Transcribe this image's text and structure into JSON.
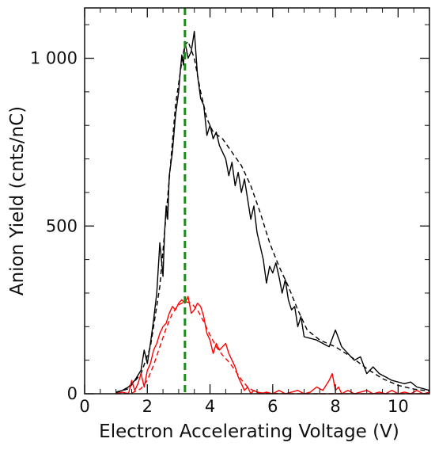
{
  "chart_data": {
    "type": "line",
    "title": "",
    "xlabel": "Electron Accelerating Voltage (V)",
    "ylabel": "Anion Yield (cnts/nC)",
    "xlim": [
      0,
      11
    ],
    "ylim": [
      0,
      1150
    ],
    "x_ticks": [
      0,
      2,
      4,
      6,
      8,
      10
    ],
    "y_ticks": [
      0,
      500,
      1000
    ],
    "x_tick_labels": [
      "0",
      "2",
      "4",
      "6",
      "8",
      "10"
    ],
    "y_tick_labels": [
      "0",
      "500",
      "1 000"
    ],
    "grid": false,
    "legend": "none",
    "vline": {
      "x": 3.2,
      "color": "#1a8a1a",
      "style": "dashed"
    },
    "series": [
      {
        "color": "#000000",
        "style": "solid",
        "x": [
          1.0,
          1.2,
          1.4,
          1.6,
          1.8,
          1.9,
          2.0,
          2.1,
          2.2,
          2.3,
          2.4,
          2.5,
          2.55,
          2.6,
          2.65,
          2.7,
          2.8,
          2.9,
          3.0,
          3.05,
          3.1,
          3.15,
          3.2,
          3.3,
          3.4,
          3.5,
          3.6,
          3.7,
          3.8,
          3.9,
          4.0,
          4.1,
          4.2,
          4.3,
          4.4,
          4.5,
          4.6,
          4.7,
          4.8,
          4.9,
          5.0,
          5.1,
          5.2,
          5.3,
          5.4,
          5.5,
          5.6,
          5.7,
          5.8,
          5.9,
          6.0,
          6.1,
          6.2,
          6.3,
          6.4,
          6.5,
          6.6,
          6.7,
          6.8,
          6.9,
          7.0,
          7.2,
          7.4,
          7.6,
          7.8,
          8.0,
          8.2,
          8.4,
          8.6,
          8.8,
          9.0,
          9.2,
          9.4,
          9.6,
          9.8,
          10.0,
          10.2,
          10.4,
          10.6,
          10.8,
          11.0
        ],
        "y": [
          5,
          10,
          20,
          40,
          70,
          130,
          90,
          150,
          220,
          300,
          450,
          350,
          480,
          560,
          520,
          650,
          720,
          830,
          900,
          960,
          1010,
          980,
          1050,
          1000,
          1020,
          1080,
          950,
          880,
          860,
          770,
          800,
          760,
          780,
          740,
          720,
          700,
          650,
          690,
          620,
          660,
          600,
          640,
          580,
          520,
          560,
          480,
          440,
          400,
          330,
          380,
          360,
          390,
          350,
          300,
          340,
          280,
          250,
          260,
          200,
          230,
          170,
          165,
          160,
          150,
          140,
          190,
          140,
          120,
          100,
          110,
          60,
          80,
          60,
          50,
          40,
          35,
          30,
          35,
          20,
          15,
          10
        ]
      },
      {
        "color": "#000000",
        "style": "dashed",
        "x": [
          1.0,
          1.4,
          1.8,
          2.1,
          2.4,
          2.7,
          2.9,
          3.1,
          3.2,
          3.3,
          3.5,
          3.7,
          3.9,
          4.1,
          4.4,
          4.7,
          5.0,
          5.3,
          5.6,
          5.9,
          6.2,
          6.5,
          6.8,
          7.1,
          7.5,
          8.0,
          8.5,
          9.0,
          9.5,
          10.0,
          10.5,
          11.0
        ],
        "y": [
          3,
          15,
          60,
          140,
          320,
          640,
          860,
          990,
          1040,
          1050,
          1000,
          900,
          820,
          780,
          760,
          720,
          680,
          620,
          540,
          450,
          380,
          320,
          250,
          190,
          160,
          140,
          110,
          75,
          45,
          25,
          14,
          8
        ]
      },
      {
        "color": "#ff0000",
        "style": "solid",
        "x": [
          1.0,
          1.2,
          1.4,
          1.5,
          1.6,
          1.7,
          1.8,
          1.9,
          2.0,
          2.1,
          2.2,
          2.3,
          2.4,
          2.5,
          2.6,
          2.7,
          2.8,
          2.9,
          3.0,
          3.1,
          3.2,
          3.3,
          3.4,
          3.5,
          3.6,
          3.7,
          3.8,
          3.9,
          4.0,
          4.1,
          4.2,
          4.3,
          4.4,
          4.5,
          4.6,
          4.7,
          4.8,
          4.9,
          5.0,
          5.1,
          5.2,
          5.3,
          5.4,
          5.6,
          5.8,
          6.0,
          6.2,
          6.4,
          6.6,
          6.8,
          7.0,
          7.2,
          7.4,
          7.6,
          7.8,
          7.9,
          8.0,
          8.1,
          8.2,
          8.4,
          8.6,
          8.8,
          9.0,
          9.2,
          9.4,
          9.6,
          9.8,
          10.0,
          10.2,
          10.4,
          10.6,
          10.8,
          11.0
        ],
        "y": [
          0,
          5,
          0,
          40,
          10,
          30,
          60,
          20,
          70,
          90,
          130,
          150,
          180,
          200,
          210,
          240,
          260,
          250,
          270,
          280,
          270,
          290,
          240,
          250,
          270,
          260,
          230,
          180,
          160,
          120,
          150,
          130,
          140,
          150,
          120,
          100,
          80,
          50,
          30,
          10,
          20,
          0,
          10,
          0,
          5,
          0,
          10,
          0,
          5,
          10,
          0,
          5,
          20,
          10,
          40,
          60,
          10,
          20,
          0,
          10,
          0,
          5,
          10,
          0,
          5,
          0,
          10,
          0,
          5,
          0,
          10,
          0,
          5
        ]
      },
      {
        "color": "#ff0000",
        "style": "dashed",
        "x": [
          1.0,
          1.5,
          1.8,
          2.0,
          2.2,
          2.4,
          2.6,
          2.8,
          3.0,
          3.2,
          3.4,
          3.6,
          3.8,
          4.0,
          4.2,
          4.4,
          4.6,
          4.8,
          5.0,
          5.2,
          5.4,
          5.6,
          6.0,
          6.5,
          7.0,
          8.0,
          9.0,
          10.0,
          11.0
        ],
        "y": [
          0,
          2,
          15,
          40,
          85,
          140,
          195,
          240,
          265,
          275,
          270,
          250,
          215,
          175,
          140,
          115,
          95,
          70,
          42,
          20,
          8,
          3,
          1,
          0,
          0,
          0,
          0,
          0,
          0
        ]
      }
    ]
  }
}
